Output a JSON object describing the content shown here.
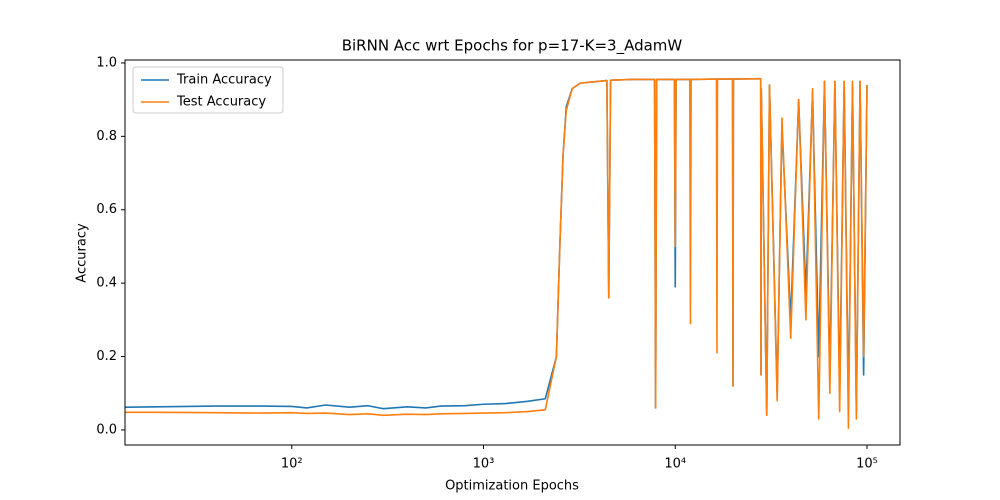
{
  "chart_data": {
    "type": "line",
    "title": "BiRNN Acc wrt Epochs for p=17-K=3_AdamW",
    "x_label": "Optimization Epochs",
    "y_label": "Accuracy",
    "x_scale": "log",
    "grid": false,
    "legend": "upper-left",
    "xlim": [
      13.5,
      148600
    ],
    "ylim": [
      -0.041,
      1.008
    ],
    "xticks": [
      {
        "value": 100,
        "label": "10²"
      },
      {
        "value": 1000,
        "label": "10³"
      },
      {
        "value": 10000,
        "label": "10⁴"
      },
      {
        "value": 100000,
        "label": "10⁵"
      }
    ],
    "yticks": [
      {
        "value": 0,
        "label": "0.0"
      },
      0.2,
      0.4,
      0.6,
      0.8,
      {
        "value": 1,
        "label": "1.0"
      }
    ],
    "x": [
      13.5,
      20,
      40,
      70,
      100,
      120,
      150,
      200,
      250,
      300,
      400,
      500,
      600,
      800,
      1000,
      1300,
      1700,
      2100,
      2400,
      2500,
      2600,
      2700,
      2900,
      3200,
      4000,
      4400,
      4500,
      4600,
      6000,
      7800,
      7900,
      8000,
      9900,
      10000,
      10100,
      11900,
      12000,
      12100,
      16400,
      16500,
      16600,
      19900,
      20000,
      20100,
      27900,
      28000,
      28100,
      30000,
      31000,
      34000,
      36000,
      40000,
      44000,
      48000,
      52000,
      56000,
      60000,
      64000,
      68000,
      72000,
      76000,
      80000,
      84000,
      88000,
      92000,
      96000,
      100000
    ],
    "series": [
      {
        "name": "Train Accuracy",
        "color": "#1f77b4",
        "values": [
          0.062,
          0.063,
          0.065,
          0.065,
          0.064,
          0.06,
          0.068,
          0.062,
          0.066,
          0.058,
          0.063,
          0.06,
          0.065,
          0.066,
          0.07,
          0.072,
          0.078,
          0.085,
          0.2,
          0.5,
          0.75,
          0.88,
          0.93,
          0.945,
          0.95,
          0.952,
          0.36,
          0.953,
          0.955,
          0.955,
          0.06,
          0.955,
          0.955,
          0.39,
          0.955,
          0.955,
          0.955,
          0.955,
          0.956,
          0.956,
          0.956,
          0.956,
          0.12,
          0.956,
          0.957,
          0.15,
          0.93,
          0.04,
          0.94,
          0.1,
          0.83,
          0.3,
          0.9,
          0.37,
          0.92,
          0.2,
          0.95,
          0.15,
          0.95,
          0.1,
          0.95,
          0.06,
          0.94,
          0.05,
          0.95,
          0.15,
          0.94
        ]
      },
      {
        "name": "Test Accuracy",
        "color": "#ff7f0e",
        "values": [
          0.048,
          0.048,
          0.047,
          0.046,
          0.047,
          0.045,
          0.046,
          0.042,
          0.044,
          0.04,
          0.043,
          0.042,
          0.044,
          0.045,
          0.046,
          0.047,
          0.05,
          0.055,
          0.2,
          0.5,
          0.75,
          0.87,
          0.93,
          0.945,
          0.95,
          0.952,
          0.36,
          0.953,
          0.955,
          0.955,
          0.06,
          0.955,
          0.955,
          0.5,
          0.955,
          0.955,
          0.29,
          0.955,
          0.956,
          0.21,
          0.956,
          0.956,
          0.12,
          0.956,
          0.957,
          0.15,
          0.93,
          0.04,
          0.94,
          0.08,
          0.85,
          0.25,
          0.9,
          0.3,
          0.93,
          0.03,
          0.95,
          0.1,
          0.95,
          0.05,
          0.95,
          0.005,
          0.95,
          0.03,
          0.95,
          0.2,
          0.94
        ]
      }
    ]
  }
}
